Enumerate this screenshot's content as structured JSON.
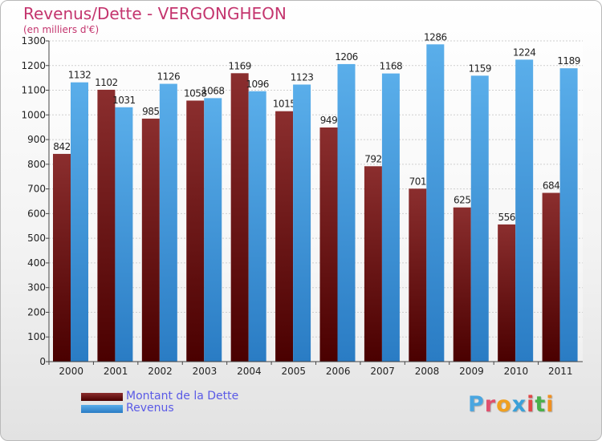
{
  "title": "Revenus/Dette - VERGONGHEON",
  "subtitle": "(en milliers d'€)",
  "legend": {
    "dette": "Montant de la Dette",
    "revenus": "Revenus"
  },
  "logo": {
    "text": "Proxiti"
  },
  "colors": {
    "dette_top": "#8b2e2e",
    "dette_bottom": "#4a0000",
    "revenus_top": "#5aaeea",
    "revenus_bottom": "#2a7cc4",
    "title": "#c4356e",
    "legend_text": "#5a5ae6"
  },
  "chart_data": {
    "type": "bar",
    "categories": [
      "2000",
      "2001",
      "2002",
      "2003",
      "2004",
      "2005",
      "2006",
      "2007",
      "2008",
      "2009",
      "2010",
      "2011"
    ],
    "series": [
      {
        "name": "Montant de la Dette",
        "values": [
          842,
          1102,
          985,
          1058,
          1169,
          1015,
          949,
          792,
          701,
          625,
          556,
          684
        ]
      },
      {
        "name": "Revenus",
        "values": [
          1132,
          1031,
          1126,
          1068,
          1096,
          1123,
          1206,
          1168,
          1286,
          1159,
          1224,
          1189
        ]
      }
    ],
    "ylim": [
      0,
      1300
    ],
    "yticks": [
      0,
      100,
      200,
      300,
      400,
      500,
      600,
      700,
      800,
      900,
      1000,
      1100,
      1200,
      1300
    ],
    "grid": true
  }
}
